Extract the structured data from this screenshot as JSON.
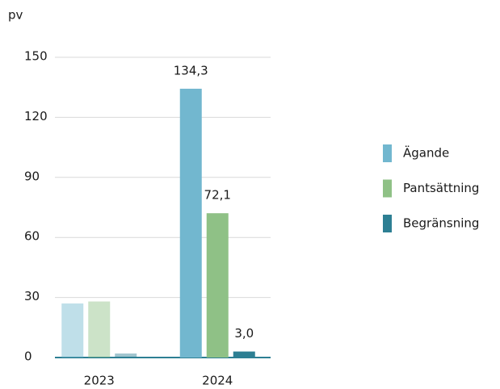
{
  "chart_data": {
    "type": "bar",
    "ylabel": "pv",
    "categories": [
      "2023",
      "2024"
    ],
    "series": [
      {
        "name": "Ägande",
        "color": "#72b7cf",
        "values": [
          27,
          134.3
        ],
        "value_labels": [
          null,
          "134,3"
        ]
      },
      {
        "name": "Pantsättning",
        "color": "#8fc186",
        "values": [
          28,
          72.1
        ],
        "value_labels": [
          null,
          "72,1"
        ]
      },
      {
        "name": "Begränsning",
        "color": "#2d7f93",
        "values": [
          2,
          3.0
        ],
        "value_labels": [
          null,
          "3,0"
        ]
      }
    ],
    "ylim": [
      0,
      150
    ],
    "yticks": [
      0,
      30,
      60,
      90,
      120,
      150
    ],
    "grid": true,
    "legend": "right"
  }
}
